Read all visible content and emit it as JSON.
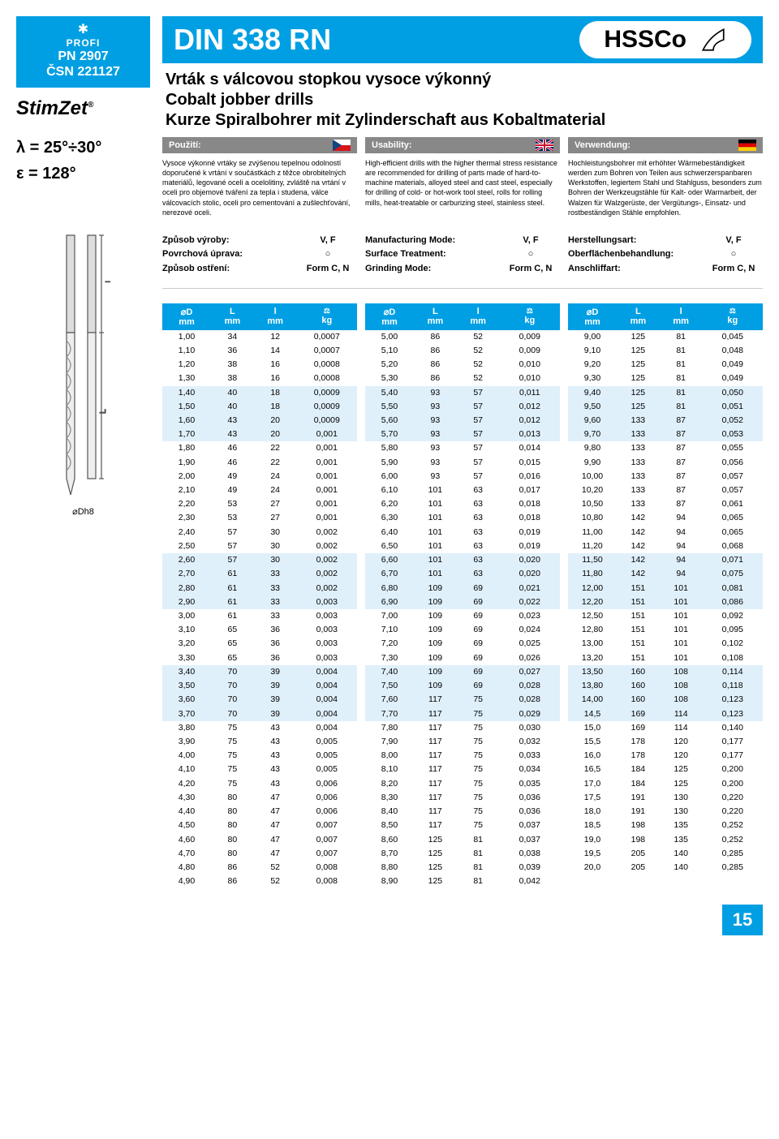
{
  "badge": {
    "profi": "PROFI",
    "pn1": "PN 2907",
    "pn2": "ČSN 221127"
  },
  "logo": "StimZet",
  "formula": {
    "l1": "λ = 25°÷30°",
    "l2": "ε = 128°"
  },
  "title": "DIN 338 RN",
  "hssco": "HSSCo",
  "subtitle": {
    "l1": "Vrták s válcovou stopkou vysoce výkonný",
    "l2": "Cobalt jobber drills",
    "l3": "Kurze Spiralbohrer mit Zylinderschaft aus Kobaltmaterial"
  },
  "desc_headers": {
    "cz": "Použití:",
    "en": "Usability:",
    "de": "Verwendung:"
  },
  "desc": {
    "cz": "Vysoce výkonné vrtáky se zvýšenou tepelnou odolností doporučené k vrtání v součástkách z těžce obrobitelných materiálů, legované oceli a ocelolitiny, zvláště na vrtání v oceli pro objemové tváření za tepla i studena, válce válcovacích stolic, oceli pro cementování a zušlechťování, nerezové oceli.",
    "en": "High-efficient drills with the higher thermal stress resistance are recommended for drilling of parts made of hard-to-machine materials, alloyed steel and cast steel, especially for drilling of cold- or hot-work tool steel, rolls for rolling mills, heat-treatable or carburizing steel, stainless steel.",
    "de": "Hochleistungsbohrer mit erhöhter Wärmebeständigkeit werden zum Bohren von Teilen aus schwerzerspanbaren Werkstoffen, legiertem Stahl und Stahlguss, besonders zum Bohren der Werkzeugstähle für Kalt- oder Warmarbeit, der Walzen für Walzgerüste, der Vergütungs-, Einsatz- und rostbeständigen Stähle empfohlen."
  },
  "props": {
    "cz": {
      "l1": "Způsob výroby:",
      "l2": "Povrchová úprava:",
      "l3": "Způsob ostření:"
    },
    "en": {
      "l1": "Manufacturing Mode:",
      "l2": "Surface Treatment:",
      "l3": "Grinding Mode:"
    },
    "de": {
      "l1": "Herstellungsart:",
      "l2": "Oberflächenbehandlung:",
      "l3": "Anschliffart:"
    },
    "v1": "V, F",
    "v2": "○",
    "v3": "Form C, N"
  },
  "table_header": {
    "c1a": "⌀D",
    "c1b": "mm",
    "c2a": "L",
    "c2b": "mm",
    "c3a": "l",
    "c3b": "mm",
    "c4": "kg"
  },
  "tables": [
    [
      [
        "1,00",
        "34",
        "12",
        "0,0007"
      ],
      [
        "1,10",
        "36",
        "14",
        "0,0007"
      ],
      [
        "1,20",
        "38",
        "16",
        "0,0008"
      ],
      [
        "1,30",
        "38",
        "16",
        "0,0008"
      ],
      [
        "1,40",
        "40",
        "18",
        "0,0009"
      ],
      [
        "1,50",
        "40",
        "18",
        "0,0009"
      ],
      [
        "1,60",
        "43",
        "20",
        "0,0009"
      ],
      [
        "1,70",
        "43",
        "20",
        "0,001"
      ],
      [
        "1,80",
        "46",
        "22",
        "0,001"
      ],
      [
        "1,90",
        "46",
        "22",
        "0,001"
      ],
      [
        "2,00",
        "49",
        "24",
        "0,001"
      ],
      [
        "2,10",
        "49",
        "24",
        "0,001"
      ],
      [
        "2,20",
        "53",
        "27",
        "0,001"
      ],
      [
        "2,30",
        "53",
        "27",
        "0,001"
      ],
      [
        "2,40",
        "57",
        "30",
        "0,002"
      ],
      [
        "2,50",
        "57",
        "30",
        "0,002"
      ],
      [
        "2,60",
        "57",
        "30",
        "0,002"
      ],
      [
        "2,70",
        "61",
        "33",
        "0,002"
      ],
      [
        "2,80",
        "61",
        "33",
        "0,002"
      ],
      [
        "2,90",
        "61",
        "33",
        "0,003"
      ],
      [
        "3,00",
        "61",
        "33",
        "0,003"
      ],
      [
        "3,10",
        "65",
        "36",
        "0,003"
      ],
      [
        "3,20",
        "65",
        "36",
        "0,003"
      ],
      [
        "3,30",
        "65",
        "36",
        "0,003"
      ],
      [
        "3,40",
        "70",
        "39",
        "0,004"
      ],
      [
        "3,50",
        "70",
        "39",
        "0,004"
      ],
      [
        "3,60",
        "70",
        "39",
        "0,004"
      ],
      [
        "3,70",
        "70",
        "39",
        "0,004"
      ],
      [
        "3,80",
        "75",
        "43",
        "0,004"
      ],
      [
        "3,90",
        "75",
        "43",
        "0,005"
      ],
      [
        "4,00",
        "75",
        "43",
        "0,005"
      ],
      [
        "4,10",
        "75",
        "43",
        "0,005"
      ],
      [
        "4,20",
        "75",
        "43",
        "0,006"
      ],
      [
        "4,30",
        "80",
        "47",
        "0,006"
      ],
      [
        "4,40",
        "80",
        "47",
        "0,006"
      ],
      [
        "4,50",
        "80",
        "47",
        "0,007"
      ],
      [
        "4,60",
        "80",
        "47",
        "0,007"
      ],
      [
        "4,70",
        "80",
        "47",
        "0,007"
      ],
      [
        "4,80",
        "86",
        "52",
        "0,008"
      ],
      [
        "4,90",
        "86",
        "52",
        "0,008"
      ]
    ],
    [
      [
        "5,00",
        "86",
        "52",
        "0,009"
      ],
      [
        "5,10",
        "86",
        "52",
        "0,009"
      ],
      [
        "5,20",
        "86",
        "52",
        "0,010"
      ],
      [
        "5,30",
        "86",
        "52",
        "0,010"
      ],
      [
        "5,40",
        "93",
        "57",
        "0,011"
      ],
      [
        "5,50",
        "93",
        "57",
        "0,012"
      ],
      [
        "5,60",
        "93",
        "57",
        "0,012"
      ],
      [
        "5,70",
        "93",
        "57",
        "0,013"
      ],
      [
        "5,80",
        "93",
        "57",
        "0,014"
      ],
      [
        "5,90",
        "93",
        "57",
        "0,015"
      ],
      [
        "6,00",
        "93",
        "57",
        "0,016"
      ],
      [
        "6,10",
        "101",
        "63",
        "0,017"
      ],
      [
        "6,20",
        "101",
        "63",
        "0,018"
      ],
      [
        "6,30",
        "101",
        "63",
        "0,018"
      ],
      [
        "6,40",
        "101",
        "63",
        "0,019"
      ],
      [
        "6,50",
        "101",
        "63",
        "0,019"
      ],
      [
        "6,60",
        "101",
        "63",
        "0,020"
      ],
      [
        "6,70",
        "101",
        "63",
        "0,020"
      ],
      [
        "6,80",
        "109",
        "69",
        "0,021"
      ],
      [
        "6,90",
        "109",
        "69",
        "0,022"
      ],
      [
        "7,00",
        "109",
        "69",
        "0,023"
      ],
      [
        "7,10",
        "109",
        "69",
        "0,024"
      ],
      [
        "7,20",
        "109",
        "69",
        "0,025"
      ],
      [
        "7,30",
        "109",
        "69",
        "0,026"
      ],
      [
        "7,40",
        "109",
        "69",
        "0,027"
      ],
      [
        "7,50",
        "109",
        "69",
        "0,028"
      ],
      [
        "7,60",
        "117",
        "75",
        "0,028"
      ],
      [
        "7,70",
        "117",
        "75",
        "0,029"
      ],
      [
        "7,80",
        "117",
        "75",
        "0,030"
      ],
      [
        "7,90",
        "117",
        "75",
        "0,032"
      ],
      [
        "8,00",
        "117",
        "75",
        "0,033"
      ],
      [
        "8,10",
        "117",
        "75",
        "0,034"
      ],
      [
        "8,20",
        "117",
        "75",
        "0,035"
      ],
      [
        "8,30",
        "117",
        "75",
        "0,036"
      ],
      [
        "8,40",
        "117",
        "75",
        "0,036"
      ],
      [
        "8,50",
        "117",
        "75",
        "0,037"
      ],
      [
        "8,60",
        "125",
        "81",
        "0,037"
      ],
      [
        "8,70",
        "125",
        "81",
        "0,038"
      ],
      [
        "8,80",
        "125",
        "81",
        "0,039"
      ],
      [
        "8,90",
        "125",
        "81",
        "0,042"
      ]
    ],
    [
      [
        "9,00",
        "125",
        "81",
        "0,045"
      ],
      [
        "9,10",
        "125",
        "81",
        "0,048"
      ],
      [
        "9,20",
        "125",
        "81",
        "0,049"
      ],
      [
        "9,30",
        "125",
        "81",
        "0,049"
      ],
      [
        "9,40",
        "125",
        "81",
        "0,050"
      ],
      [
        "9,50",
        "125",
        "81",
        "0,051"
      ],
      [
        "9,60",
        "133",
        "87",
        "0,052"
      ],
      [
        "9,70",
        "133",
        "87",
        "0,053"
      ],
      [
        "9,80",
        "133",
        "87",
        "0,055"
      ],
      [
        "9,90",
        "133",
        "87",
        "0,056"
      ],
      [
        "10,00",
        "133",
        "87",
        "0,057"
      ],
      [
        "10,20",
        "133",
        "87",
        "0,057"
      ],
      [
        "10,50",
        "133",
        "87",
        "0,061"
      ],
      [
        "10,80",
        "142",
        "94",
        "0,065"
      ],
      [
        "11,00",
        "142",
        "94",
        "0,065"
      ],
      [
        "11,20",
        "142",
        "94",
        "0,068"
      ],
      [
        "11,50",
        "142",
        "94",
        "0,071"
      ],
      [
        "11,80",
        "142",
        "94",
        "0,075"
      ],
      [
        "12,00",
        "151",
        "101",
        "0,081"
      ],
      [
        "12,20",
        "151",
        "101",
        "0,086"
      ],
      [
        "12,50",
        "151",
        "101",
        "0,092"
      ],
      [
        "12,80",
        "151",
        "101",
        "0,095"
      ],
      [
        "13,00",
        "151",
        "101",
        "0,102"
      ],
      [
        "13,20",
        "151",
        "101",
        "0,108"
      ],
      [
        "13,50",
        "160",
        "108",
        "0,114"
      ],
      [
        "13,80",
        "160",
        "108",
        "0,118"
      ],
      [
        "14,00",
        "160",
        "108",
        "0,123"
      ],
      [
        "14,5",
        "169",
        "114",
        "0,123"
      ],
      [
        "15,0",
        "169",
        "114",
        "0,140"
      ],
      [
        "15,5",
        "178",
        "120",
        "0,177"
      ],
      [
        "16,0",
        "178",
        "120",
        "0,177"
      ],
      [
        "16,5",
        "184",
        "125",
        "0,200"
      ],
      [
        "17,0",
        "184",
        "125",
        "0,200"
      ],
      [
        "17,5",
        "191",
        "130",
        "0,220"
      ],
      [
        "18,0",
        "191",
        "130",
        "0,220"
      ],
      [
        "18,5",
        "198",
        "135",
        "0,252"
      ],
      [
        "19,0",
        "198",
        "135",
        "0,252"
      ],
      [
        "19,5",
        "205",
        "140",
        "0,285"
      ],
      [
        "20,0",
        "205",
        "140",
        "0,285"
      ]
    ]
  ],
  "shade_rows": [
    [
      4,
      5,
      6,
      7,
      16,
      17,
      18,
      19,
      24,
      25,
      26,
      27
    ],
    [
      4,
      5,
      6,
      7,
      16,
      17,
      18,
      19,
      24,
      25,
      26,
      27
    ],
    [
      4,
      5,
      6,
      7,
      16,
      17,
      18,
      19,
      24,
      25,
      26,
      27
    ]
  ],
  "dh8": "⌀Dh8",
  "page_number": "15"
}
